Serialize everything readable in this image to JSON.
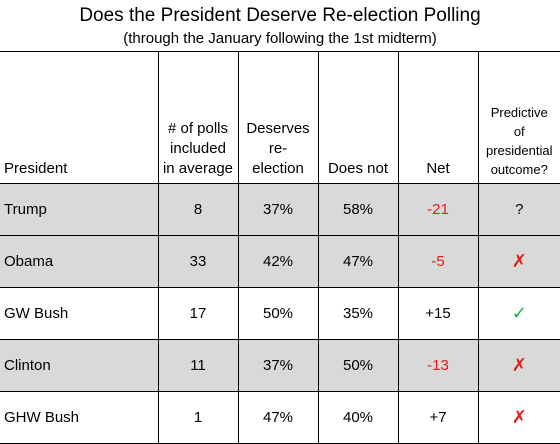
{
  "title": "Does the President Deserve Re-election Polling",
  "subtitle": "(through the January following the 1st midterm)",
  "colors": {
    "shaded_row": "#d9d9d9",
    "negative_net": "#e0201b",
    "cross_mark": "#e0201b",
    "check_mark": "#20b24a"
  },
  "headers": {
    "president": "President",
    "polls_line1": "# of polls",
    "polls_line2": "included",
    "polls_line3": "in average",
    "deserves_line1": "Deserves",
    "deserves_line2": "re-",
    "deserves_line3": "election",
    "does_not": "Does not",
    "net": "Net",
    "predictive_line1": "Predictive",
    "predictive_line2": "of",
    "predictive_line3": "presidential",
    "predictive_line4": "outcome?"
  },
  "rows": [
    {
      "president": "Trump",
      "polls": "8",
      "deserves": "37%",
      "does_not": "58%",
      "net": "-21",
      "predictive": "?",
      "predictive_icon": "question-mark",
      "shaded": true
    },
    {
      "president": "Obama",
      "polls": "33",
      "deserves": "42%",
      "does_not": "47%",
      "net": "-5",
      "predictive": "✗",
      "predictive_icon": "cross-icon",
      "shaded": true
    },
    {
      "president": "GW Bush",
      "polls": "17",
      "deserves": "50%",
      "does_not": "35%",
      "net": "+15",
      "predictive": "✓",
      "predictive_icon": "check-icon",
      "shaded": false
    },
    {
      "president": "Clinton",
      "polls": "11",
      "deserves": "37%",
      "does_not": "50%",
      "net": "-13",
      "predictive": "✗",
      "predictive_icon": "cross-icon",
      "shaded": true
    },
    {
      "president": "GHW Bush",
      "polls": "1",
      "deserves": "47%",
      "does_not": "40%",
      "net": "+7",
      "predictive": "✗",
      "predictive_icon": "cross-icon",
      "shaded": false
    }
  ]
}
